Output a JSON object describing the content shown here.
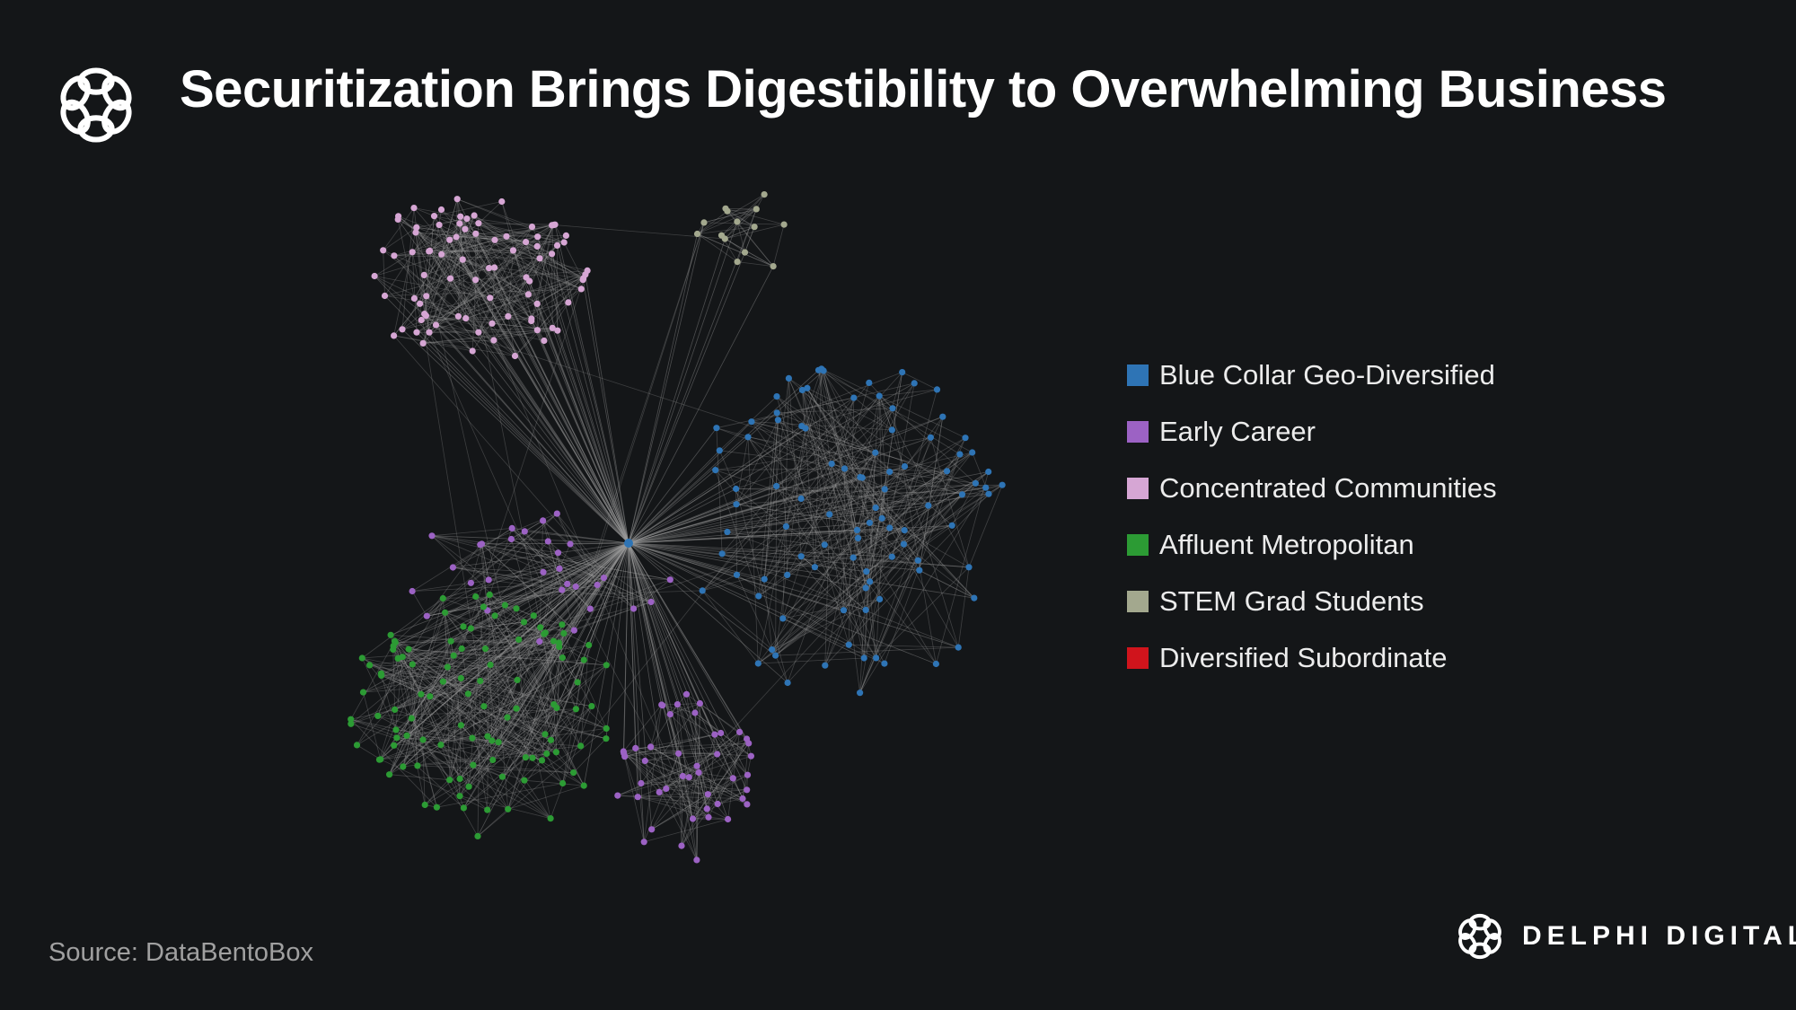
{
  "header": {
    "title": "Securitization Brings Digestibility to Overwhelming Business",
    "logo_icon": "delphi-knot-icon"
  },
  "legend": [
    {
      "label": "Blue Collar Geo-Diversified",
      "color": "#2e74b5"
    },
    {
      "label": "Early Career",
      "color": "#9c62c4"
    },
    {
      "label": "Concentrated Communities",
      "color": "#d6a6d4"
    },
    {
      "label": "Affluent Metropolitan",
      "color": "#2c9b34"
    },
    {
      "label": "STEM Grad Students",
      "color": "#a3a88e"
    },
    {
      "label": "Diversified Subordinate",
      "color": "#d0141c"
    }
  ],
  "colors": {
    "background": "#141618",
    "edge": "#9a9a9a",
    "hub": "#2e74b5"
  },
  "footer": {
    "source": "Source: DataBentoBox",
    "brand_name": "DELPHI DIGITAL",
    "brand_icon": "delphi-knot-icon"
  }
}
